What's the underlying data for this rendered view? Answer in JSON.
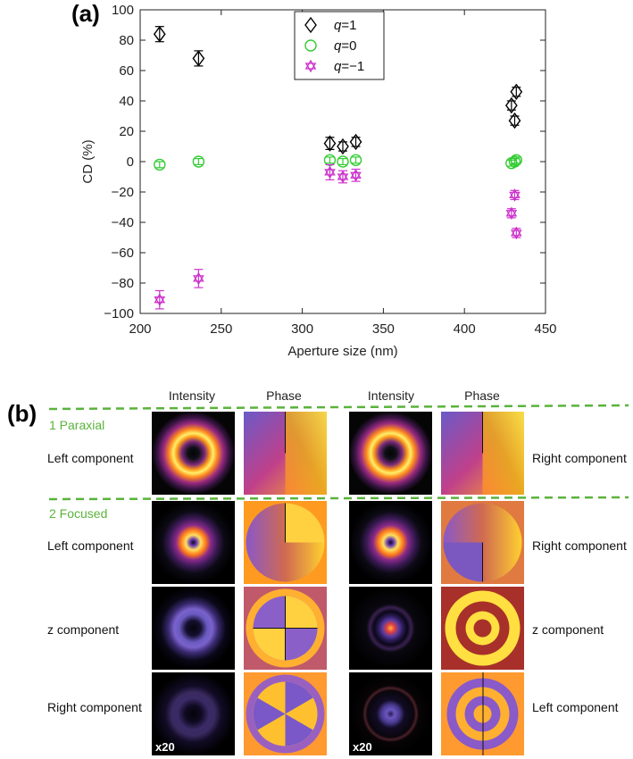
{
  "panel_a_label": "(a)",
  "panel_b_label": "(b)",
  "chart_data": {
    "type": "scatter",
    "title": "",
    "xlabel": "Aperture size (nm)",
    "ylabel": "CD (%)",
    "xlim": [
      200,
      450
    ],
    "ylim": [
      -100,
      100
    ],
    "xticks": [
      200,
      250,
      300,
      350,
      400,
      450
    ],
    "yticks": [
      -100,
      -80,
      -60,
      -40,
      -20,
      0,
      20,
      40,
      60,
      80,
      100
    ],
    "grid": false,
    "legend_position": "top-center",
    "series": [
      {
        "name": "q=1",
        "q_text": "=1",
        "marker": "diamond",
        "color": "#000000",
        "points": [
          {
            "x": 212,
            "y": 84,
            "err": 5
          },
          {
            "x": 236,
            "y": 68,
            "err": 5
          },
          {
            "x": 317,
            "y": 12,
            "err": 4
          },
          {
            "x": 325,
            "y": 10,
            "err": 3
          },
          {
            "x": 333,
            "y": 13,
            "err": 3
          },
          {
            "x": 429,
            "y": 37,
            "err": 3
          },
          {
            "x": 431,
            "y": 27,
            "err": 3
          },
          {
            "x": 432,
            "y": 46,
            "err": 3
          }
        ]
      },
      {
        "name": "q=0",
        "q_text": "=0",
        "marker": "circle",
        "color": "#33cc33",
        "points": [
          {
            "x": 212,
            "y": -2,
            "err": 2
          },
          {
            "x": 236,
            "y": 0,
            "err": 2
          },
          {
            "x": 317,
            "y": 1,
            "err": 2
          },
          {
            "x": 325,
            "y": 0,
            "err": 2
          },
          {
            "x": 333,
            "y": 1,
            "err": 2
          },
          {
            "x": 429,
            "y": -1,
            "err": 2
          },
          {
            "x": 431,
            "y": 0,
            "err": 2
          },
          {
            "x": 432,
            "y": 1,
            "err": 2
          }
        ]
      },
      {
        "name": "q=−1",
        "q_text": "=−1",
        "marker": "star",
        "color": "#cc33cc",
        "points": [
          {
            "x": 212,
            "y": -91,
            "err": 6
          },
          {
            "x": 236,
            "y": -77,
            "err": 6
          },
          {
            "x": 317,
            "y": -7,
            "err": 5
          },
          {
            "x": 325,
            "y": -10,
            "err": 4
          },
          {
            "x": 333,
            "y": -9,
            "err": 4
          },
          {
            "x": 429,
            "y": -34,
            "err": 3
          },
          {
            "x": 431,
            "y": -22,
            "err": 3
          },
          {
            "x": 432,
            "y": -47,
            "err": 3
          }
        ]
      }
    ]
  },
  "panel_b": {
    "column_headers": [
      "Intensity",
      "Phase",
      "Intensity",
      "Phase"
    ],
    "sections": {
      "paraxial": "1 Paraxial",
      "focused": "2 Focused"
    },
    "row_labels_left": [
      "Left component",
      "Left component",
      "z component",
      "Right component"
    ],
    "row_labels_right": [
      "Right component",
      "Right component",
      "z component",
      "Left component"
    ],
    "magnification": "x20",
    "section_color": "#5ab33b"
  }
}
